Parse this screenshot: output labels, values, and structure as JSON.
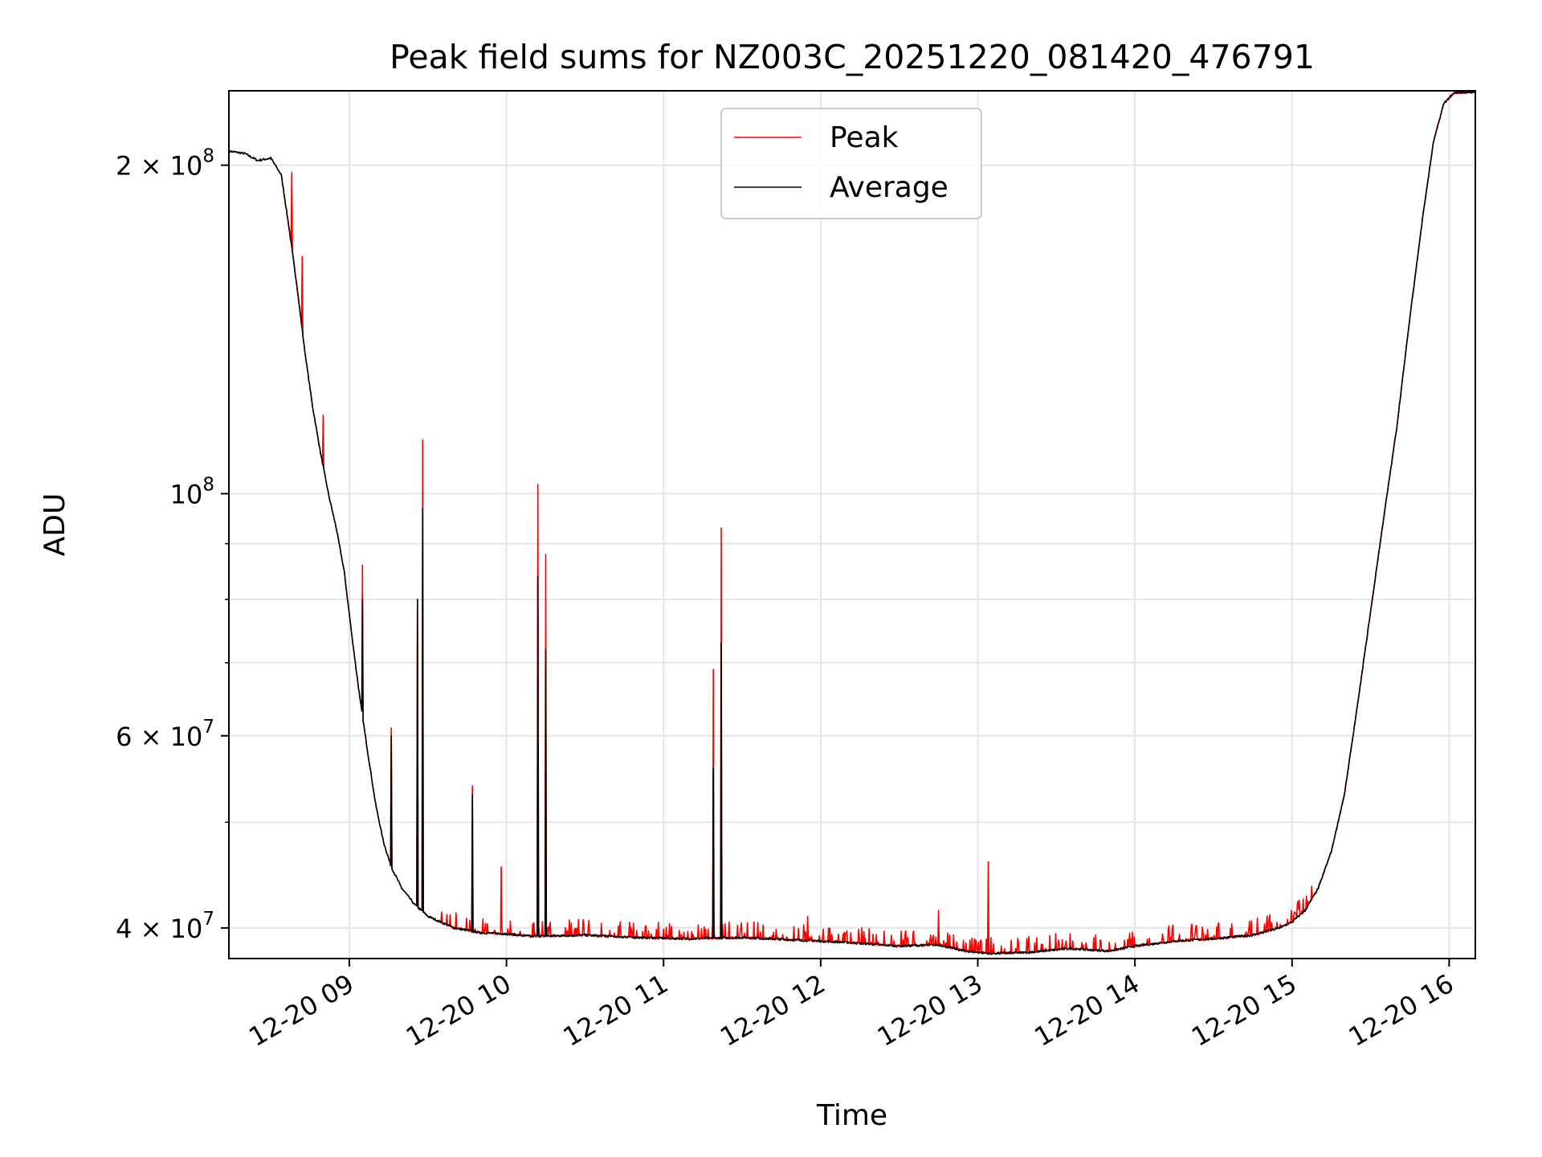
{
  "chart_data": {
    "type": "line",
    "title": "Peak field sums for NZ003C_20251220_081420_476791",
    "xlabel": "Time",
    "ylabel": "ADU",
    "y_scale": "log",
    "ylim": [
      37500000,
      234000000
    ],
    "xlim": [
      "2025-12-20 08:14",
      "2025-12-20 16:10"
    ],
    "grid": true,
    "legend_placement": "upper center",
    "x_ticks": [
      {
        "t": "2025-12-20 09:00",
        "label": "12-20 09"
      },
      {
        "t": "2025-12-20 10:00",
        "label": "12-20 10"
      },
      {
        "t": "2025-12-20 11:00",
        "label": "12-20 11"
      },
      {
        "t": "2025-12-20 12:00",
        "label": "12-20 12"
      },
      {
        "t": "2025-12-20 13:00",
        "label": "12-20 13"
      },
      {
        "t": "2025-12-20 14:00",
        "label": "12-20 14"
      },
      {
        "t": "2025-12-20 15:00",
        "label": "12-20 15"
      },
      {
        "t": "2025-12-20 16:00",
        "label": "12-20 16"
      }
    ],
    "y_ticks_major": [
      {
        "v": 40000000,
        "label": "4 × 10",
        "exp": "7"
      },
      {
        "v": 60000000,
        "label": "6 × 10",
        "exp": "7"
      },
      {
        "v": 100000000,
        "label": "10",
        "exp": "8"
      },
      {
        "v": 200000000,
        "label": "2 × 10",
        "exp": "8"
      }
    ],
    "y_gridlines": [
      40000000,
      50000000,
      60000000,
      70000000,
      80000000,
      90000000,
      100000000,
      200000000
    ],
    "series": [
      {
        "name": "Average",
        "color": "#000000",
        "points": [
          [
            "2025-12-20 08:14",
            206000000
          ],
          [
            "2025-12-20 08:20",
            205000000
          ],
          [
            "2025-12-20 08:25",
            202000000
          ],
          [
            "2025-12-20 08:30",
            203000000
          ],
          [
            "2025-12-20 08:34",
            196000000
          ],
          [
            "2025-12-20 08:37",
            175000000
          ],
          [
            "2025-12-20 08:40",
            155000000
          ],
          [
            "2025-12-20 08:43",
            135000000
          ],
          [
            "2025-12-20 08:46",
            120000000
          ],
          [
            "2025-12-20 08:49",
            109000000
          ],
          [
            "2025-12-20 08:52",
            100000000
          ],
          [
            "2025-12-20 08:55",
            93000000
          ],
          [
            "2025-12-20 08:58",
            85000000
          ],
          [
            "2025-12-20 09:01",
            74000000
          ],
          [
            "2025-12-20 09:04",
            65000000
          ],
          [
            "2025-12-20 09:07",
            58000000
          ],
          [
            "2025-12-20 09:10",
            52000000
          ],
          [
            "2025-12-20 09:13",
            48000000
          ],
          [
            "2025-12-20 09:16",
            45500000
          ],
          [
            "2025-12-20 09:20",
            43500000
          ],
          [
            "2025-12-20 09:25",
            42000000
          ],
          [
            "2025-12-20 09:30",
            41000000
          ],
          [
            "2025-12-20 09:40",
            40000000
          ],
          [
            "2025-12-20 09:50",
            39600000
          ],
          [
            "2025-12-20 10:00",
            39500000
          ],
          [
            "2025-12-20 10:10",
            39300000
          ],
          [
            "2025-12-20 10:30",
            39400000
          ],
          [
            "2025-12-20 10:50",
            39200000
          ],
          [
            "2025-12-20 11:10",
            39100000
          ],
          [
            "2025-12-20 11:30",
            39200000
          ],
          [
            "2025-12-20 11:50",
            39000000
          ],
          [
            "2025-12-20 12:10",
            38800000
          ],
          [
            "2025-12-20 12:30",
            38500000
          ],
          [
            "2025-12-20 12:45",
            38600000
          ],
          [
            "2025-12-20 12:55",
            38100000
          ],
          [
            "2025-12-20 13:05",
            37900000
          ],
          [
            "2025-12-20 13:20",
            38000000
          ],
          [
            "2025-12-20 13:35",
            38300000
          ],
          [
            "2025-12-20 13:50",
            38100000
          ],
          [
            "2025-12-20 14:00",
            38500000
          ],
          [
            "2025-12-20 14:15",
            38900000
          ],
          [
            "2025-12-20 14:30",
            39100000
          ],
          [
            "2025-12-20 14:45",
            39400000
          ],
          [
            "2025-12-20 14:55",
            40000000
          ],
          [
            "2025-12-20 15:00",
            40500000
          ],
          [
            "2025-12-20 15:05",
            41500000
          ],
          [
            "2025-12-20 15:10",
            43500000
          ],
          [
            "2025-12-20 15:15",
            47000000
          ],
          [
            "2025-12-20 15:20",
            53000000
          ],
          [
            "2025-12-20 15:25",
            64000000
          ],
          [
            "2025-12-20 15:30",
            78000000
          ],
          [
            "2025-12-20 15:35",
            95000000
          ],
          [
            "2025-12-20 15:40",
            115000000
          ],
          [
            "2025-12-20 15:45",
            145000000
          ],
          [
            "2025-12-20 15:50",
            180000000
          ],
          [
            "2025-12-20 15:54",
            210000000
          ],
          [
            "2025-12-20 15:58",
            228000000
          ],
          [
            "2025-12-20 16:02",
            233000000
          ],
          [
            "2025-12-20 16:10",
            233500000
          ]
        ],
        "spikes": [
          [
            "2025-12-20 09:05",
            80000000
          ],
          [
            "2025-12-20 09:16",
            60000000
          ],
          [
            "2025-12-20 09:26",
            80000000
          ],
          [
            "2025-12-20 09:28",
            97000000
          ],
          [
            "2025-12-20 09:47",
            53000000
          ],
          [
            "2025-12-20 10:12",
            84000000
          ],
          [
            "2025-12-20 10:15",
            72000000
          ],
          [
            "2025-12-20 11:19",
            56000000
          ],
          [
            "2025-12-20 11:22",
            73000000
          ]
        ]
      },
      {
        "name": "Peak",
        "color": "#ff0000",
        "follows": "Average",
        "spikes": [
          [
            "2025-12-20 08:38",
            197000000
          ],
          [
            "2025-12-20 08:42",
            165000000
          ],
          [
            "2025-12-20 08:50",
            118000000
          ],
          [
            "2025-12-20 09:05",
            86000000
          ],
          [
            "2025-12-20 09:16",
            61000000
          ],
          [
            "2025-12-20 09:26",
            80000000
          ],
          [
            "2025-12-20 09:28",
            112000000
          ],
          [
            "2025-12-20 09:47",
            54000000
          ],
          [
            "2025-12-20 09:58",
            45500000
          ],
          [
            "2025-12-20 10:12",
            102000000
          ],
          [
            "2025-12-20 10:15",
            88000000
          ],
          [
            "2025-12-20 11:19",
            69000000
          ],
          [
            "2025-12-20 11:22",
            93000000
          ],
          [
            "2025-12-20 11:55",
            41000000
          ],
          [
            "2025-12-20 12:45",
            41500000
          ],
          [
            "2025-12-20 13:04",
            46000000
          ],
          [
            "2025-12-20 15:27",
            65000000
          ],
          [
            "2025-12-20 15:33",
            80000000
          ]
        ],
        "noise": [
          {
            "from": "2025-12-20 09:35",
            "to": "2025-12-20 15:12",
            "amp": 0.035
          }
        ]
      }
    ]
  }
}
